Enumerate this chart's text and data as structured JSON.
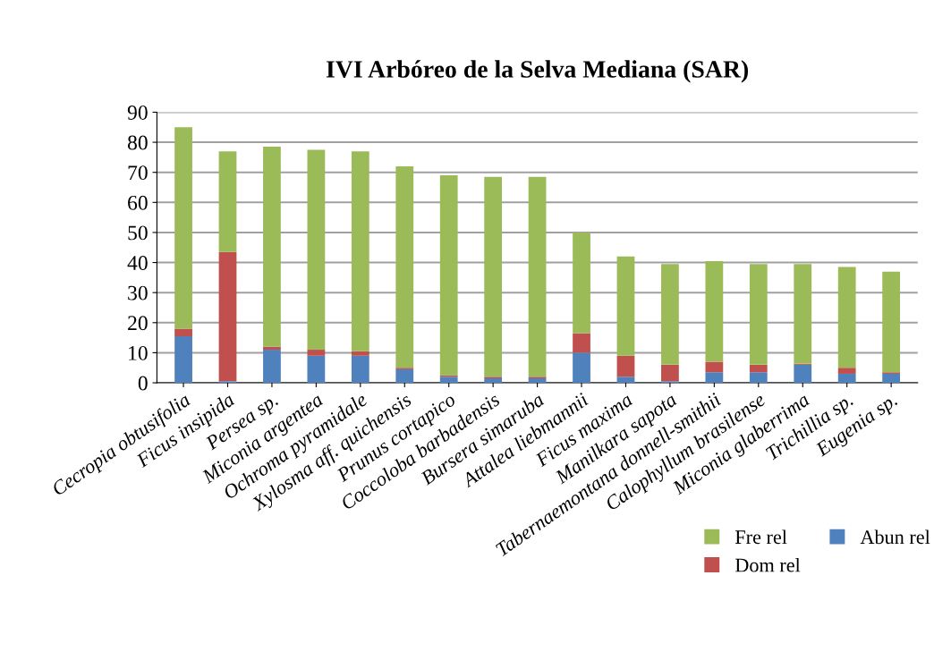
{
  "chart_data": {
    "type": "bar",
    "title": "IVI Arbóreo de la Selva Mediana (SAR)",
    "stacked": true,
    "categories": [
      "Cecropia obtusifolia",
      "Ficus insipida",
      "Persea sp.",
      "Miconia argentea",
      "Ochroma pyramidale",
      "Xylosma aff. quichensis",
      "Prunus cortapico",
      "Coccoloba barbadensis",
      "Bursera simaruba",
      "Attalea liebmannii",
      "Ficus maxima",
      "Manilkara sapota",
      "Tabernaemontana donnell-smithii",
      "Calophyllum brasilense",
      "Miconia glaberrima",
      "Trichillia sp.",
      "Eugenia sp."
    ],
    "series": [
      {
        "name": "Abun rel",
        "color": "#4f81bd",
        "values": [
          15.5,
          0.5,
          11,
          9,
          9,
          4.5,
          2,
          1.5,
          1.5,
          10,
          2,
          0.5,
          3.5,
          3.5,
          6,
          3,
          3
        ]
      },
      {
        "name": "Dom rel",
        "color": "#c0504d",
        "values": [
          2.5,
          43,
          1,
          2,
          1.5,
          0.5,
          0.5,
          0.5,
          0.5,
          6.5,
          7,
          5.5,
          3.5,
          2.5,
          0.3,
          2,
          0.5
        ]
      },
      {
        "name": "Fre rel",
        "color": "#9bbb59",
        "values": [
          67,
          33.5,
          66.5,
          66.5,
          66.5,
          67,
          66.5,
          66.5,
          66.5,
          33.5,
          33,
          33.5,
          33.5,
          33.5,
          33.2,
          33.5,
          33.5
        ]
      }
    ],
    "ylim": [
      0,
      90
    ],
    "yticks": [
      0,
      10,
      20,
      30,
      40,
      50,
      60,
      70,
      80,
      90
    ],
    "grid": "y",
    "legend": "bottom right"
  }
}
